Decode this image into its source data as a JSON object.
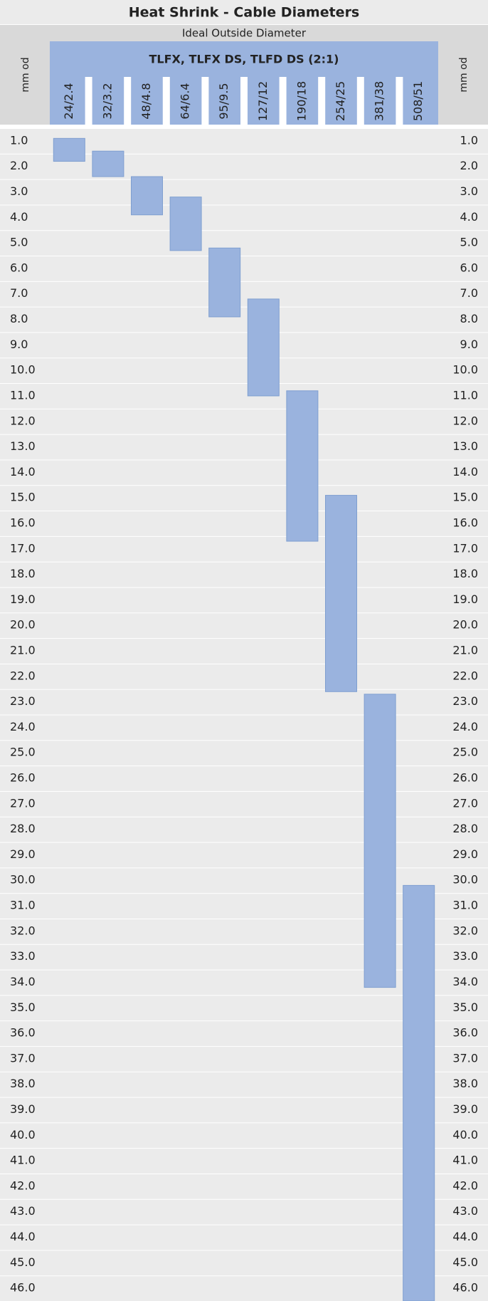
{
  "chart_data": {
    "type": "range",
    "title": "Heat Shrink - Cable Diameters",
    "subtitle": "Ideal Outside Diameter",
    "group_label": "TLFX, TLFX DS, TLFD DS (2:1)",
    "y_label": "mm od",
    "color": "#9ab3de",
    "categories": [
      "24/2.4",
      "32/3.2",
      "48/4.8",
      "64/6.4",
      "95/9.5",
      "127/12",
      "190/18",
      "254/25",
      "381/38",
      "508/51"
    ],
    "low": [
      0.9,
      1.4,
      2.4,
      3.2,
      5.2,
      7.2,
      10.8,
      14.9,
      22.7,
      30.2
    ],
    "high": [
      1.8,
      2.4,
      3.9,
      5.3,
      7.9,
      11.0,
      16.7,
      22.6,
      34.2,
      46.5
    ],
    "ylim": [
      0.5,
      46.5
    ],
    "yticks": [
      {
        "value": 1,
        "label": "1.0"
      },
      {
        "value": 2,
        "label": "2.0"
      },
      {
        "value": 3,
        "label": "3.0"
      },
      {
        "value": 4,
        "label": "4.0"
      },
      {
        "value": 5,
        "label": "5.0"
      },
      {
        "value": 6,
        "label": "6.0"
      },
      {
        "value": 7,
        "label": "7.0"
      },
      {
        "value": 8,
        "label": "8.0"
      },
      {
        "value": 9,
        "label": "9.0"
      },
      {
        "value": 10,
        "label": "10.0"
      },
      {
        "value": 11,
        "label": "11.0"
      },
      {
        "value": 12,
        "label": "12.0"
      },
      {
        "value": 13,
        "label": "13.0"
      },
      {
        "value": 14,
        "label": "14.0"
      },
      {
        "value": 15,
        "label": "15.0"
      },
      {
        "value": 16,
        "label": "16.0"
      },
      {
        "value": 17,
        "label": "17.0"
      },
      {
        "value": 18,
        "label": "18.0"
      },
      {
        "value": 19,
        "label": "19.0"
      },
      {
        "value": 20,
        "label": "20.0"
      },
      {
        "value": 21,
        "label": "21.0"
      },
      {
        "value": 22,
        "label": "22.0"
      },
      {
        "value": 23,
        "label": "23.0"
      },
      {
        "value": 24,
        "label": "24.0"
      },
      {
        "value": 25,
        "label": "25.0"
      },
      {
        "value": 26,
        "label": "26.0"
      },
      {
        "value": 27,
        "label": "27.0"
      },
      {
        "value": 28,
        "label": "28.0"
      },
      {
        "value": 29,
        "label": "29.0"
      },
      {
        "value": 30,
        "label": "30.0"
      },
      {
        "value": 31,
        "label": "31.0"
      },
      {
        "value": 32,
        "label": "32.0"
      },
      {
        "value": 33,
        "label": "33.0"
      },
      {
        "value": 34,
        "label": "34.0"
      },
      {
        "value": 35,
        "label": "35.0"
      },
      {
        "value": 36,
        "label": "36.0"
      },
      {
        "value": 37,
        "label": "37.0"
      },
      {
        "value": 38,
        "label": "38.0"
      },
      {
        "value": 39,
        "label": "39.0"
      },
      {
        "value": 40,
        "label": "40.0"
      },
      {
        "value": 41,
        "label": "41.0"
      },
      {
        "value": 42,
        "label": "42.0"
      },
      {
        "value": 43,
        "label": "43.0"
      },
      {
        "value": 44,
        "label": "44.0"
      },
      {
        "value": 45,
        "label": "45.0"
      },
      {
        "value": 46,
        "label": "46.0"
      }
    ]
  }
}
